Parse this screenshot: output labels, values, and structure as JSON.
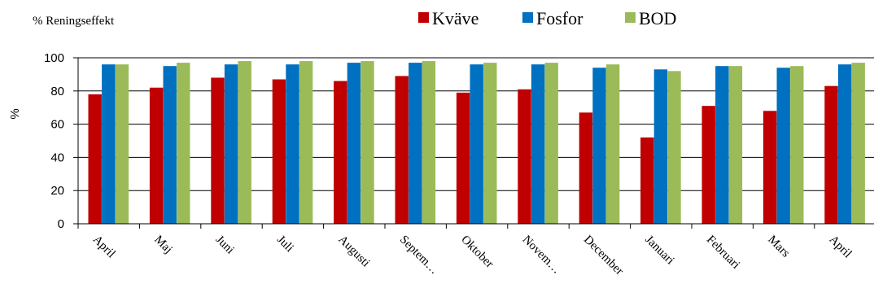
{
  "chart_data": {
    "type": "bar",
    "title": "% Reningseffekt",
    "ylabel": "%",
    "xlabel": "",
    "ylim": [
      0,
      100
    ],
    "yticks": [
      0,
      20,
      40,
      60,
      80,
      100
    ],
    "grid": true,
    "legend_position": "top-right",
    "categories": [
      "April",
      "Maj",
      "Juni",
      "Juli",
      "Augusti",
      "Septem…",
      "Oktober",
      "Novem…",
      "December",
      "Januari",
      "Februari",
      "Mars",
      "April"
    ],
    "series": [
      {
        "name": "Kväve",
        "color": "#c00000",
        "values": [
          78,
          82,
          88,
          87,
          86,
          89,
          79,
          81,
          67,
          52,
          71,
          68,
          83
        ]
      },
      {
        "name": "Fosfor",
        "color": "#0070c0",
        "values": [
          96,
          95,
          96,
          96,
          97,
          97,
          96,
          96,
          94,
          93,
          95,
          94,
          96
        ]
      },
      {
        "name": "BOD",
        "color": "#9bbb59",
        "values": [
          96,
          97,
          98,
          98,
          98,
          98,
          97,
          97,
          96,
          92,
          95,
          95,
          97
        ]
      }
    ]
  }
}
